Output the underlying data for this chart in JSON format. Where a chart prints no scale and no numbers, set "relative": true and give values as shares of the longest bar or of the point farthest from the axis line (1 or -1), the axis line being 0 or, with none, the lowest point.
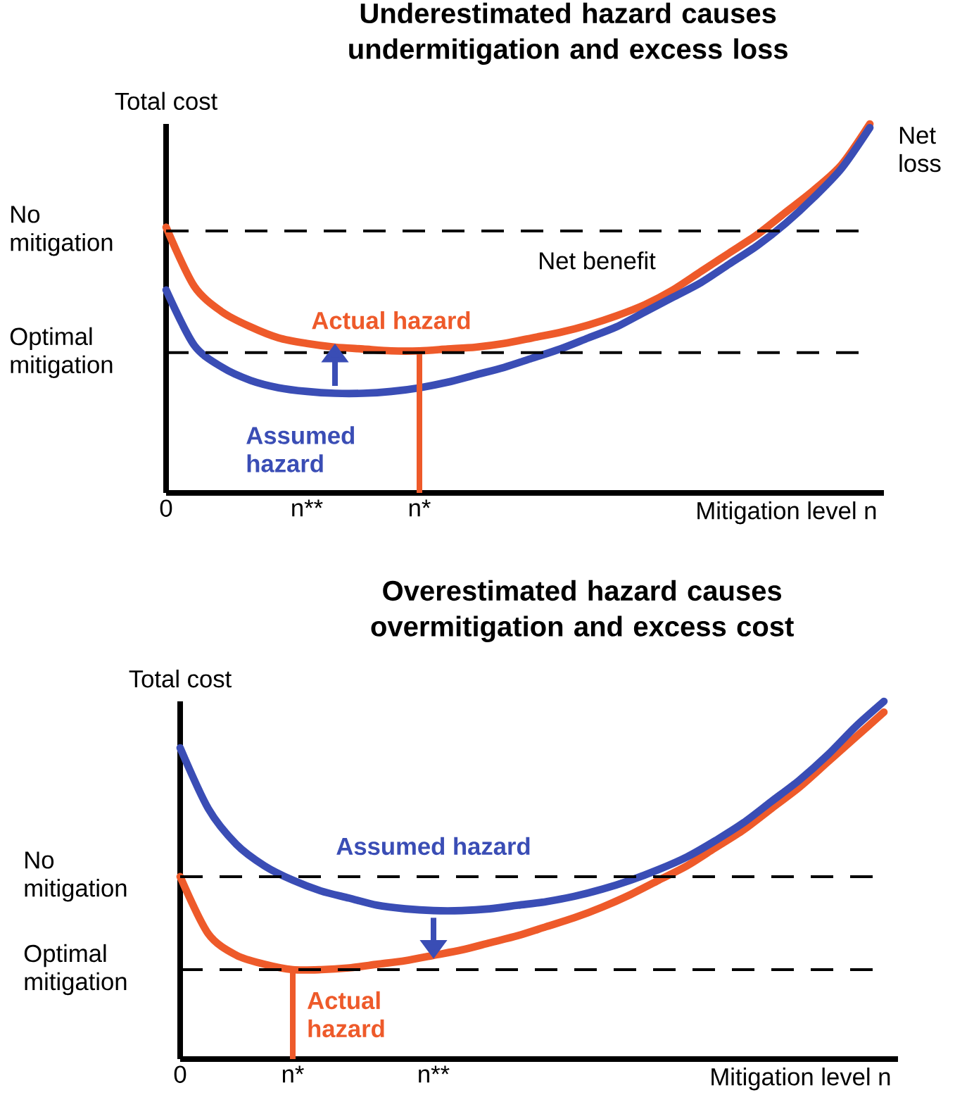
{
  "chart_data": [
    {
      "type": "line",
      "title": "Underestimated hazard causes undermitigation and excess loss",
      "xlabel": "Mitigation level n",
      "ylabel": "Total cost",
      "relative": true,
      "legend": false,
      "grid": false,
      "categories": [
        "0",
        null,
        null,
        null,
        null,
        "n**",
        null,
        null,
        null,
        "n*",
        null,
        null,
        null,
        null,
        null,
        null,
        null,
        null,
        null,
        null,
        null,
        null,
        null,
        null,
        null,
        null
      ],
      "series": [
        {
          "name": "Actual hazard",
          "color": "#ee5a2a",
          "values": [
            0.72,
            0.56,
            0.49,
            0.45,
            0.42,
            0.405,
            0.395,
            0.39,
            0.385,
            0.385,
            0.39,
            0.395,
            0.405,
            0.42,
            0.435,
            0.455,
            0.48,
            0.51,
            0.55,
            0.6,
            0.65,
            0.7,
            0.76,
            0.82,
            0.89,
            1.0
          ]
        },
        {
          "name": "Assumed hazard",
          "color": "#3a4db5",
          "values": [
            0.55,
            0.4,
            0.34,
            0.305,
            0.285,
            0.275,
            0.27,
            0.27,
            0.275,
            0.285,
            0.3,
            0.32,
            0.34,
            0.365,
            0.39,
            0.42,
            0.45,
            0.49,
            0.53,
            0.57,
            0.62,
            0.67,
            0.73,
            0.8,
            0.88,
            0.99
          ]
        },
        {
          "type": "bar",
          "color": "#ee5a2a",
          "values": [
            null,
            null,
            null,
            null,
            null,
            null,
            null,
            null,
            null,
            0.385,
            null,
            null,
            null,
            null,
            null,
            null,
            null,
            null,
            null,
            null,
            null,
            null,
            null,
            null,
            null,
            null
          ]
        }
      ],
      "ref_lines": [
        {
          "axis": "y",
          "value": 0.71,
          "label": "No mitigation",
          "line_style": "dashed",
          "color": "#000000"
        },
        {
          "axis": "y",
          "value": 0.38,
          "label": "Optimal mitigation",
          "line_style": "dashed",
          "color": "#000000"
        }
      ],
      "annotations": [
        "Net benefit",
        "Net loss"
      ]
    },
    {
      "type": "line",
      "title": "Overestimated hazard causes overmitigation and excess cost",
      "xlabel": "Mitigation level n",
      "ylabel": "Total cost",
      "relative": true,
      "legend": false,
      "grid": false,
      "categories": [
        "0",
        null,
        null,
        null,
        "n*",
        null,
        null,
        null,
        null,
        "n**",
        null,
        null,
        null,
        null,
        null,
        null,
        null,
        null,
        null,
        null,
        null,
        null,
        null,
        null,
        null,
        null
      ],
      "series": [
        {
          "name": "Actual hazard",
          "color": "#ee5a2a",
          "values": [
            0.51,
            0.35,
            0.29,
            0.265,
            0.25,
            0.25,
            0.255,
            0.265,
            0.275,
            0.29,
            0.305,
            0.325,
            0.345,
            0.37,
            0.395,
            0.425,
            0.46,
            0.5,
            0.54,
            0.59,
            0.64,
            0.7,
            0.76,
            0.83,
            0.9,
            0.97
          ]
        },
        {
          "name": "Assumed hazard",
          "color": "#3a4db5",
          "values": [
            0.87,
            0.7,
            0.6,
            0.54,
            0.5,
            0.47,
            0.45,
            0.43,
            0.42,
            0.415,
            0.415,
            0.42,
            0.43,
            0.44,
            0.455,
            0.475,
            0.5,
            0.53,
            0.565,
            0.61,
            0.66,
            0.72,
            0.78,
            0.85,
            0.93,
            1.0
          ]
        },
        {
          "type": "bar",
          "color": "#ee5a2a",
          "values": [
            null,
            null,
            null,
            null,
            0.25,
            null,
            null,
            null,
            null,
            null,
            null,
            null,
            null,
            null,
            null,
            null,
            null,
            null,
            null,
            null,
            null,
            null,
            null,
            null,
            null,
            null
          ]
        }
      ],
      "ref_lines": [
        {
          "axis": "y",
          "value": 0.51,
          "label": "No mitigation",
          "line_style": "dashed",
          "color": "#000000"
        },
        {
          "axis": "y",
          "value": 0.25,
          "label": "Optimal mitigation",
          "line_style": "dashed",
          "color": "#000000"
        }
      ]
    }
  ]
}
